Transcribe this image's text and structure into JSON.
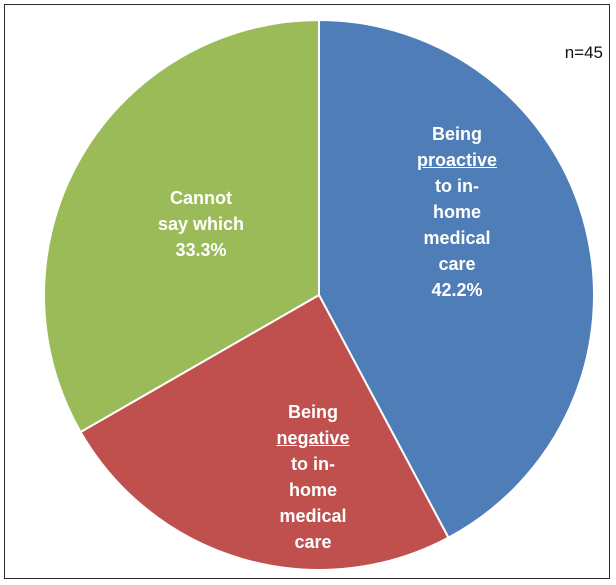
{
  "sample_size": "n=45",
  "chart_data": {
    "type": "pie",
    "start_angle_deg": 0,
    "direction": "clockwise",
    "slices": [
      {
        "lines": [
          "Being",
          "proactive",
          "to in-",
          "home",
          "medical",
          "care",
          "42.2%"
        ],
        "underline_line": 1,
        "value": 42.2,
        "color": "#4f7db8"
      },
      {
        "lines": [
          "Being",
          "negative",
          "to in-",
          "home",
          "medical",
          "care"
        ],
        "underline_line": 1,
        "value": 24.5,
        "color": "#bf504d"
      },
      {
        "lines": [
          "Cannot",
          "say which",
          "33.3%"
        ],
        "underline_line": -1,
        "value": 33.3,
        "color": "#9bbb59"
      }
    ]
  }
}
